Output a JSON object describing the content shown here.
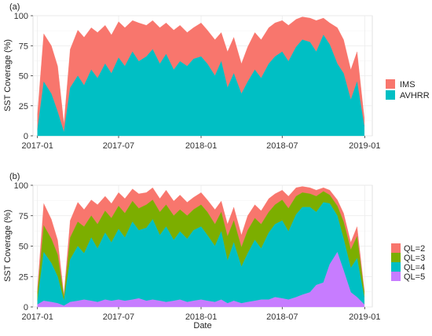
{
  "colors": {
    "IMS": "#f8766d",
    "AVHRR": "#00bfc4",
    "QL2": "#f8766d",
    "QL3": "#7cae00",
    "QL4": "#00bfc4",
    "QL5": "#c77cff",
    "panel_bg": "#ffffff",
    "grid": "#ebebeb"
  },
  "chart_data": [
    {
      "type": "area",
      "panel_label": "(a)",
      "stacked": true,
      "title": "",
      "xlabel": "",
      "ylabel": "SST Coverage (%)",
      "xlim": [
        "2016-12-22",
        "2019-01-18"
      ],
      "ylim": [
        0,
        100
      ],
      "x_ticks": [
        "2017-01",
        "2017-07",
        "2018-01",
        "2018-07",
        "2019-01"
      ],
      "y_ticks": [
        0,
        25,
        50,
        75,
        100
      ],
      "grid": true,
      "legend_position": "right",
      "series": [
        {
          "name": "IMS",
          "color": "#f8766d"
        },
        {
          "name": "AVHRR",
          "color": "#00bfc4"
        }
      ],
      "x": [
        "2017-01-01",
        "2017-01-15",
        "2017-02-01",
        "2017-02-15",
        "2017-03-01",
        "2017-03-15",
        "2017-04-01",
        "2017-04-15",
        "2017-05-01",
        "2017-05-15",
        "2017-06-01",
        "2017-06-15",
        "2017-07-01",
        "2017-07-15",
        "2017-08-01",
        "2017-08-15",
        "2017-09-01",
        "2017-09-15",
        "2017-10-01",
        "2017-10-15",
        "2017-11-01",
        "2017-11-15",
        "2017-12-01",
        "2017-12-15",
        "2018-01-01",
        "2018-01-15",
        "2018-02-01",
        "2018-02-15",
        "2018-03-01",
        "2018-03-15",
        "2018-04-01",
        "2018-04-15",
        "2018-05-01",
        "2018-05-15",
        "2018-06-01",
        "2018-06-15",
        "2018-07-01",
        "2018-07-15",
        "2018-08-01",
        "2018-08-15",
        "2018-09-01",
        "2018-09-15",
        "2018-10-01",
        "2018-10-15",
        "2018-11-01",
        "2018-11-15",
        "2018-12-01",
        "2018-12-15",
        "2018-12-31"
      ],
      "avhrr": [
        5,
        45,
        35,
        20,
        3,
        40,
        50,
        42,
        55,
        48,
        60,
        52,
        65,
        58,
        70,
        62,
        66,
        72,
        60,
        68,
        55,
        62,
        58,
        64,
        66,
        60,
        50,
        62,
        40,
        52,
        35,
        45,
        55,
        48,
        60,
        66,
        70,
        62,
        74,
        80,
        78,
        70,
        84,
        76,
        60,
        52,
        30,
        45,
        8
      ],
      "total": [
        18,
        85,
        75,
        58,
        10,
        72,
        88,
        82,
        90,
        86,
        92,
        84,
        95,
        90,
        96,
        94,
        92,
        96,
        90,
        94,
        88,
        92,
        86,
        90,
        94,
        88,
        80,
        86,
        70,
        82,
        60,
        74,
        86,
        80,
        90,
        94,
        96,
        92,
        97,
        99,
        98,
        96,
        98,
        94,
        90,
        80,
        55,
        70,
        15
      ]
    },
    {
      "type": "area",
      "panel_label": "(b)",
      "stacked": true,
      "title": "",
      "xlabel": "Date",
      "ylabel": "SST Coverage (%)",
      "xlim": [
        "2016-12-22",
        "2019-01-18"
      ],
      "ylim": [
        0,
        100
      ],
      "x_ticks": [
        "2017-01",
        "2017-07",
        "2018-01",
        "2018-07",
        "2019-01"
      ],
      "y_ticks": [
        0,
        25,
        50,
        75,
        100
      ],
      "grid": true,
      "legend_position": "right",
      "series": [
        {
          "name": "QL=2",
          "color": "#f8766d"
        },
        {
          "name": "QL=3",
          "color": "#7cae00"
        },
        {
          "name": "QL=4",
          "color": "#00bfc4"
        },
        {
          "name": "QL=5",
          "color": "#c77cff"
        }
      ],
      "x": [
        "2017-01-01",
        "2017-01-15",
        "2017-02-01",
        "2017-02-15",
        "2017-03-01",
        "2017-03-15",
        "2017-04-01",
        "2017-04-15",
        "2017-05-01",
        "2017-05-15",
        "2017-06-01",
        "2017-06-15",
        "2017-07-01",
        "2017-07-15",
        "2017-08-01",
        "2017-08-15",
        "2017-09-01",
        "2017-09-15",
        "2017-10-01",
        "2017-10-15",
        "2017-11-01",
        "2017-11-15",
        "2017-12-01",
        "2017-12-15",
        "2018-01-01",
        "2018-01-15",
        "2018-02-01",
        "2018-02-15",
        "2018-03-01",
        "2018-03-15",
        "2018-04-01",
        "2018-04-15",
        "2018-05-01",
        "2018-05-15",
        "2018-06-01",
        "2018-06-15",
        "2018-07-01",
        "2018-07-15",
        "2018-08-01",
        "2018-08-15",
        "2018-09-01",
        "2018-09-15",
        "2018-10-01",
        "2018-10-15",
        "2018-11-01",
        "2018-11-15",
        "2018-12-01",
        "2018-12-15",
        "2018-12-31"
      ],
      "ql5": [
        2,
        5,
        4,
        3,
        1,
        4,
        5,
        6,
        5,
        4,
        6,
        5,
        6,
        5,
        6,
        7,
        5,
        6,
        5,
        4,
        5,
        6,
        4,
        5,
        6,
        5,
        4,
        6,
        3,
        5,
        3,
        4,
        5,
        6,
        6,
        8,
        7,
        6,
        8,
        10,
        12,
        18,
        20,
        35,
        45,
        30,
        12,
        8,
        2
      ],
      "ql4": [
        3,
        40,
        32,
        22,
        4,
        35,
        45,
        38,
        52,
        44,
        55,
        48,
        58,
        52,
        64,
        56,
        60,
        66,
        54,
        62,
        50,
        56,
        52,
        58,
        60,
        54,
        46,
        56,
        35,
        48,
        30,
        40,
        50,
        42,
        55,
        60,
        64,
        56,
        68,
        72,
        70,
        60,
        66,
        50,
        30,
        26,
        20,
        32,
        6
      ],
      "ql3": [
        6,
        22,
        20,
        18,
        3,
        18,
        20,
        22,
        18,
        20,
        18,
        20,
        19,
        20,
        17,
        18,
        19,
        16,
        19,
        18,
        20,
        18,
        19,
        17,
        18,
        19,
        18,
        16,
        20,
        18,
        16,
        19,
        18,
        20,
        17,
        16,
        17,
        19,
        15,
        12,
        11,
        13,
        9,
        7,
        8,
        14,
        15,
        18,
        4
      ],
      "ql2": [
        4,
        18,
        16,
        12,
        2,
        14,
        16,
        14,
        13,
        16,
        12,
        12,
        11,
        12,
        10,
        12,
        10,
        10,
        11,
        12,
        12,
        12,
        11,
        10,
        10,
        10,
        12,
        9,
        10,
        11,
        10,
        12,
        11,
        11,
        11,
        9,
        8,
        10,
        7,
        5,
        5,
        5,
        3,
        4,
        5,
        7,
        6,
        8,
        2
      ]
    }
  ]
}
